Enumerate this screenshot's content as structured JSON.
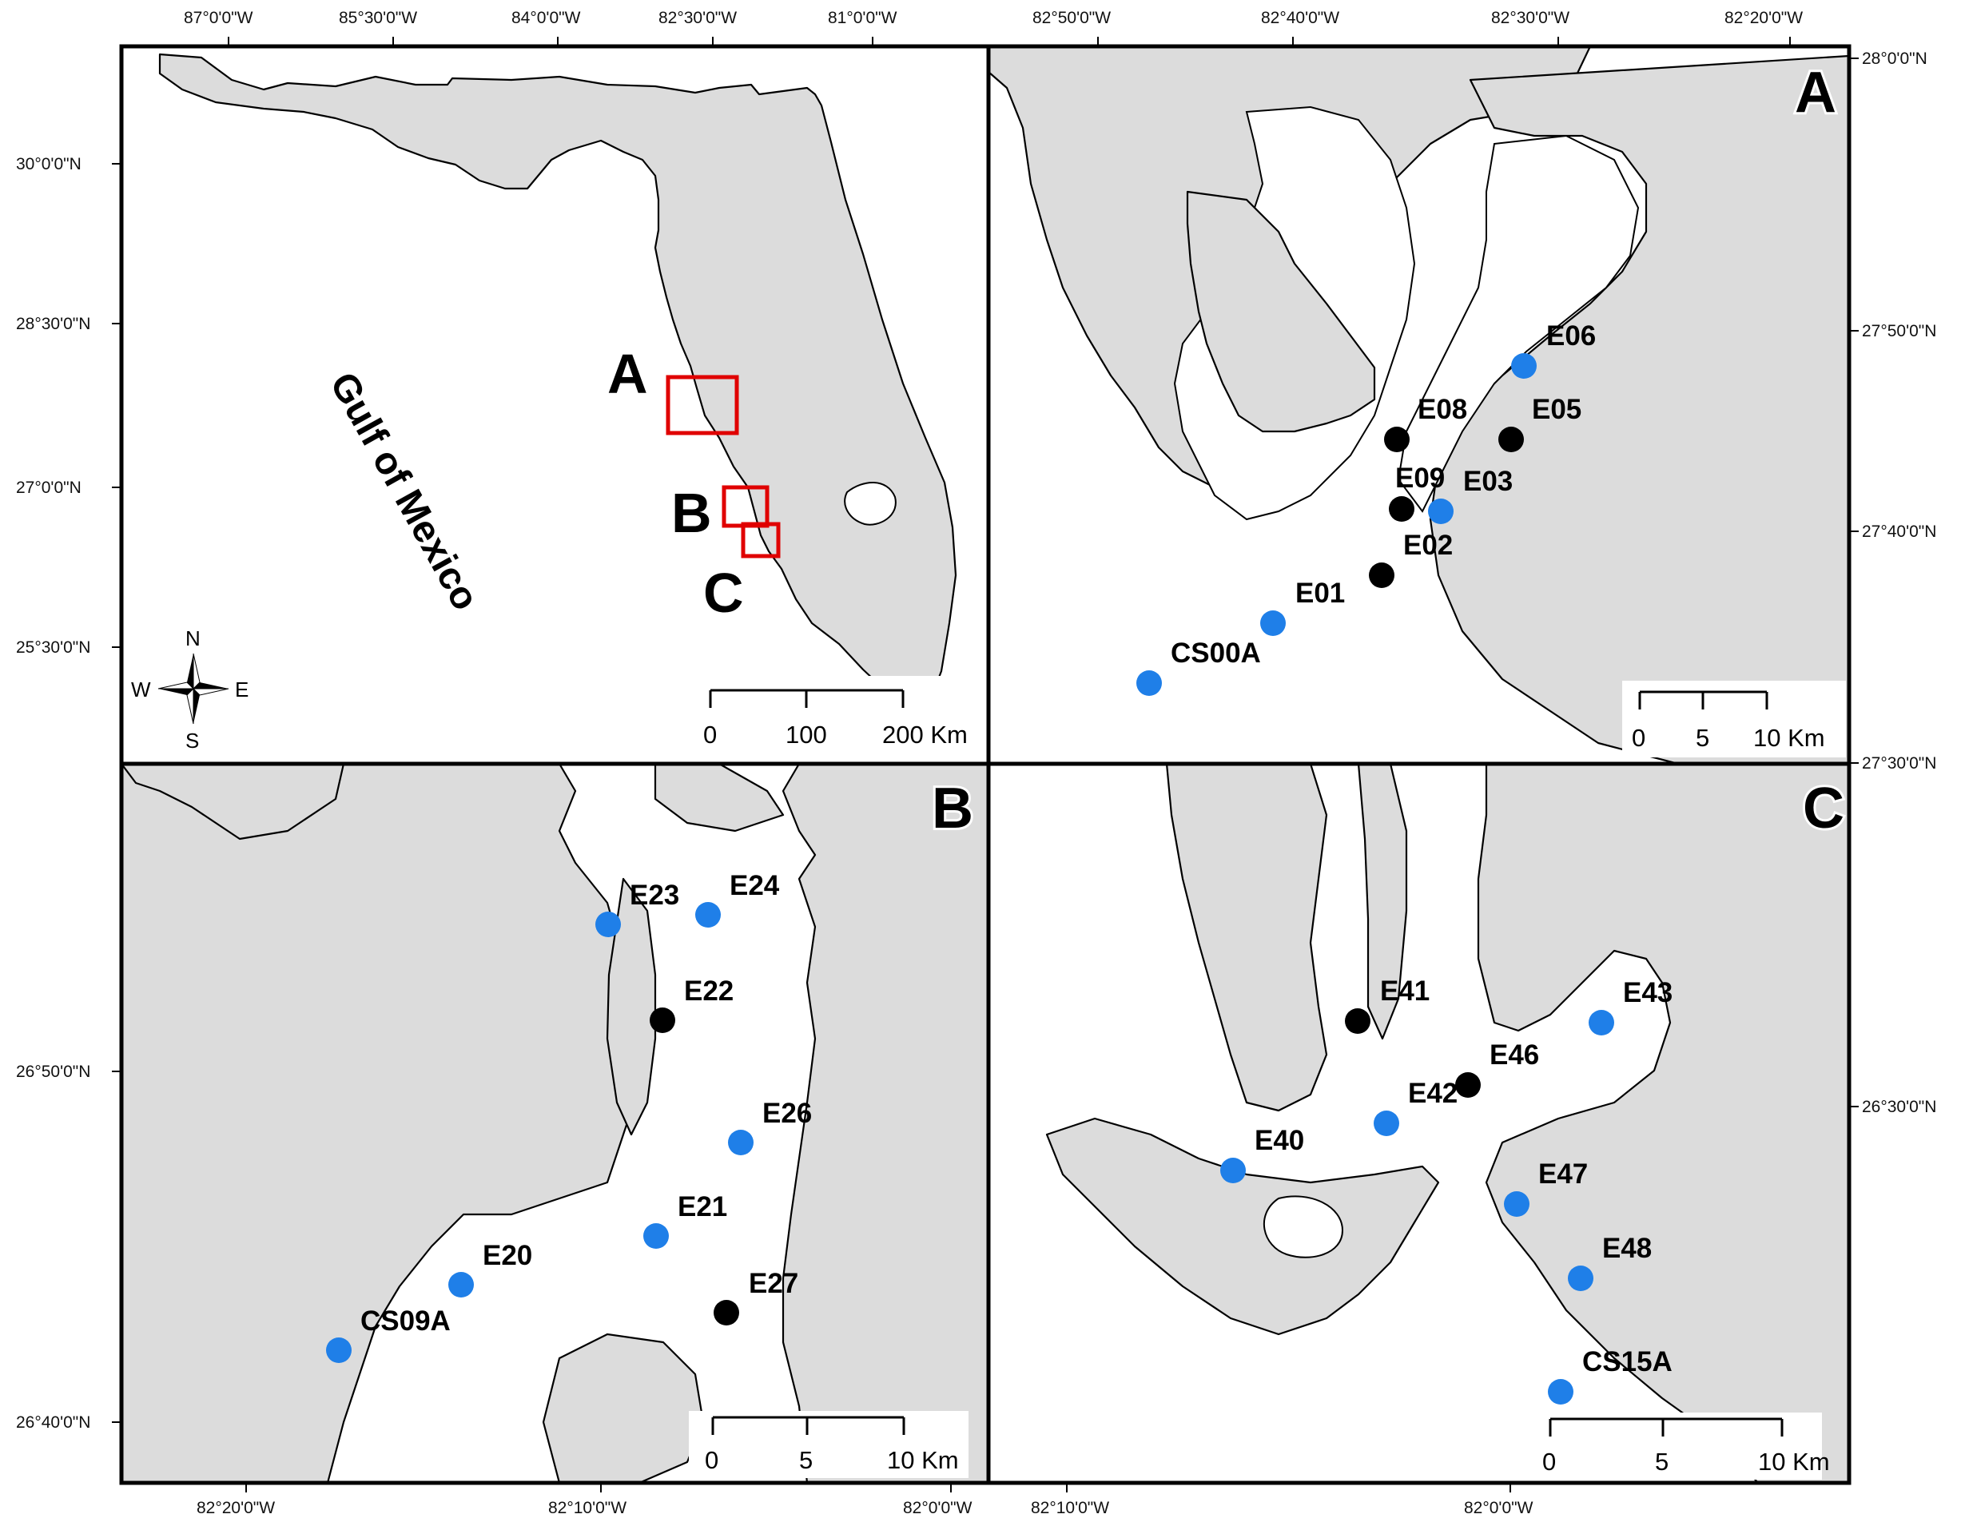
{
  "colors": {
    "land": "#dcdcdc",
    "water": "#ffffff",
    "site_blue": "#1f7fe8",
    "site_black": "#000000",
    "inset_box": "#e00000"
  },
  "overview": {
    "water_label": "Gulf of Mexico",
    "inset_letters": [
      "A",
      "B",
      "C"
    ],
    "top_longitudes": [
      "87°0'0\"W",
      "85°30'0\"W",
      "84°0'0\"W",
      "82°30'0\"W",
      "81°0'0\"W"
    ],
    "left_latitudes": [
      "30°0'0\"N",
      "28°30'0\"N",
      "27°0'0\"N",
      "25°30'0\"N"
    ],
    "compass": {
      "n": "N",
      "s": "S",
      "e": "E",
      "w": "W"
    },
    "scale": {
      "ticks": [
        "0",
        "100",
        "200 Km"
      ]
    }
  },
  "panel_a": {
    "letter": "A",
    "top_longitudes": [
      "82°50'0\"W",
      "82°40'0\"W",
      "82°30'0\"W",
      "82°20'0\"W"
    ],
    "right_latitudes": [
      "28°0'0\"N",
      "27°50'0\"N",
      "27°40'0\"N",
      "27°30'0\"N"
    ],
    "scale": {
      "ticks": [
        "0",
        "5",
        "10 Km"
      ]
    },
    "sites": [
      {
        "id": "E06",
        "color": "blue"
      },
      {
        "id": "E08",
        "color": "black"
      },
      {
        "id": "E05",
        "color": "black"
      },
      {
        "id": "E09",
        "color": "black"
      },
      {
        "id": "E03",
        "color": "blue"
      },
      {
        "id": "E02",
        "color": "black"
      },
      {
        "id": "E01",
        "color": "blue"
      },
      {
        "id": "CS00A",
        "color": "blue"
      }
    ]
  },
  "panel_b": {
    "letter": "B",
    "bottom_longitudes": [
      "82°20'0\"W",
      "82°10'0\"W",
      "82°0'0\"W"
    ],
    "left_latitudes": [
      "26°50'0\"N",
      "26°40'0\"N"
    ],
    "scale": {
      "ticks": [
        "0",
        "5",
        "10 Km"
      ]
    },
    "sites": [
      {
        "id": "E23",
        "color": "blue"
      },
      {
        "id": "E24",
        "color": "blue"
      },
      {
        "id": "E22",
        "color": "black"
      },
      {
        "id": "E26",
        "color": "blue"
      },
      {
        "id": "E21",
        "color": "blue"
      },
      {
        "id": "E20",
        "color": "blue"
      },
      {
        "id": "E27",
        "color": "black"
      },
      {
        "id": "CS09A",
        "color": "blue"
      }
    ]
  },
  "panel_c": {
    "letter": "C",
    "bottom_longitudes": [
      "82°10'0\"W",
      "82°0'0\"W"
    ],
    "right_latitudes": [
      "26°30'0\"N"
    ],
    "scale": {
      "ticks": [
        "0",
        "5",
        "10 Km"
      ]
    },
    "sites": [
      {
        "id": "E41",
        "color": "black"
      },
      {
        "id": "E43",
        "color": "blue"
      },
      {
        "id": "E46",
        "color": "black"
      },
      {
        "id": "E42",
        "color": "blue"
      },
      {
        "id": "E40",
        "color": "blue"
      },
      {
        "id": "E47",
        "color": "blue"
      },
      {
        "id": "E48",
        "color": "blue"
      },
      {
        "id": "CS15A",
        "color": "blue"
      }
    ]
  }
}
